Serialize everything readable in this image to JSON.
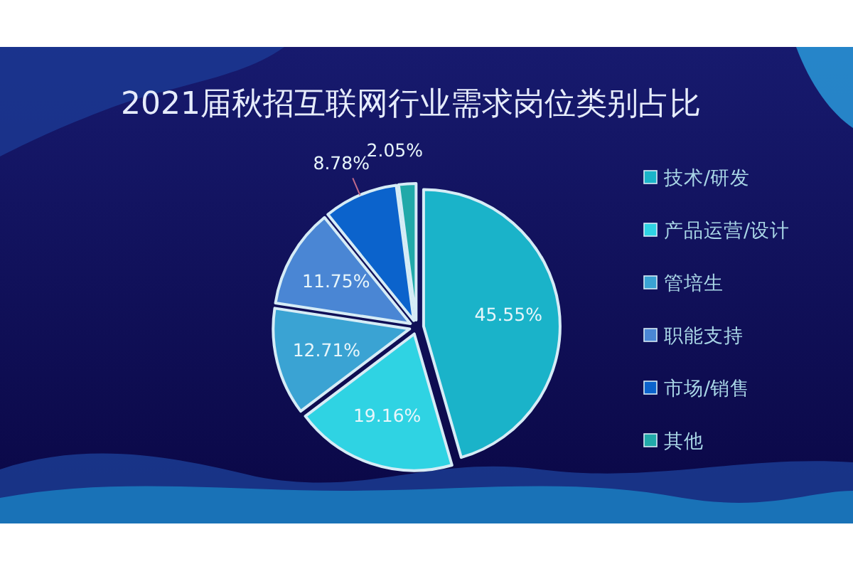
{
  "chart_data": {
    "type": "pie",
    "title": "2021届秋招互联网行业需求岗位类别占比",
    "categories": [
      "技术/研发",
      "产品运营/设计",
      "管培生",
      "职能支持",
      "市场/销售",
      "其他"
    ],
    "values": [
      45.55,
      19.16,
      12.71,
      11.75,
      8.78,
      2.05
    ],
    "colors": [
      "#1ab3c9",
      "#2fd3e3",
      "#3aa3d3",
      "#4a86d4",
      "#0b63cc",
      "#21a9a9"
    ],
    "value_labels": [
      "45.55%",
      "19.16%",
      "12.71%",
      "11.75%",
      "8.78%",
      "2.05%"
    ],
    "legend": "right"
  }
}
